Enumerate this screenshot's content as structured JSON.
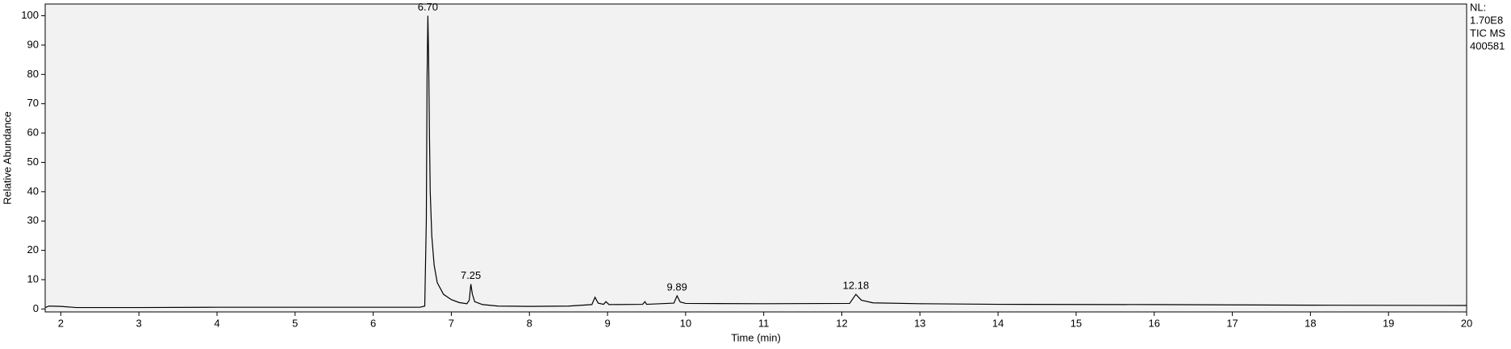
{
  "chart_data": {
    "type": "line",
    "xlabel": "Time (min)",
    "ylabel": "Relative Abundance",
    "info": [
      "NL:",
      "1.70E8",
      "TIC  MS",
      "400581"
    ],
    "color": "#000000",
    "background": "#f2f2f2",
    "xlim": [
      1.8,
      20
    ],
    "ylim": [
      -1,
      104
    ],
    "xticks": [
      2,
      3,
      4,
      5,
      6,
      7,
      8,
      9,
      10,
      11,
      12,
      13,
      14,
      15,
      16,
      17,
      18,
      19,
      20
    ],
    "yticks": [
      0,
      10,
      20,
      30,
      40,
      50,
      60,
      70,
      80,
      90,
      100
    ],
    "x": [
      1.8,
      1.85,
      2.0,
      2.2,
      3.0,
      4.0,
      5.0,
      6.0,
      6.6,
      6.66,
      6.68,
      6.69,
      6.7,
      6.71,
      6.72,
      6.73,
      6.75,
      6.78,
      6.82,
      6.9,
      7.0,
      7.1,
      7.2,
      7.23,
      7.25,
      7.27,
      7.3,
      7.4,
      7.6,
      8.0,
      8.5,
      8.8,
      8.84,
      8.88,
      8.95,
      8.98,
      9.02,
      9.45,
      9.48,
      9.5,
      9.85,
      9.89,
      9.93,
      10.0,
      11.0,
      12.1,
      12.18,
      12.25,
      12.4,
      13.0,
      14.0,
      16.0,
      18.0,
      20.0
    ],
    "values": [
      0.5,
      1.0,
      0.9,
      0.5,
      0.5,
      0.6,
      0.6,
      0.6,
      0.6,
      1.0,
      30,
      80,
      100,
      85,
      60,
      40,
      25,
      15,
      9,
      5,
      3.2,
      2.2,
      1.8,
      3,
      8.5,
      5,
      2.5,
      1.5,
      1.0,
      0.9,
      1.0,
      1.5,
      4,
      2,
      1.6,
      2.5,
      1.5,
      1.6,
      2.5,
      1.6,
      2,
      4.5,
      2.4,
      1.9,
      1.8,
      1.9,
      5,
      3,
      2.1,
      1.8,
      1.6,
      1.5,
      1.3,
      1.2
    ],
    "annotations": [
      {
        "text": "6.70",
        "x": 6.7,
        "y": 100
      },
      {
        "text": "7.25",
        "x": 7.25,
        "y": 8.5
      },
      {
        "text": "9.89",
        "x": 9.89,
        "y": 4.5
      },
      {
        "text": "12.18",
        "x": 12.18,
        "y": 5
      }
    ]
  }
}
